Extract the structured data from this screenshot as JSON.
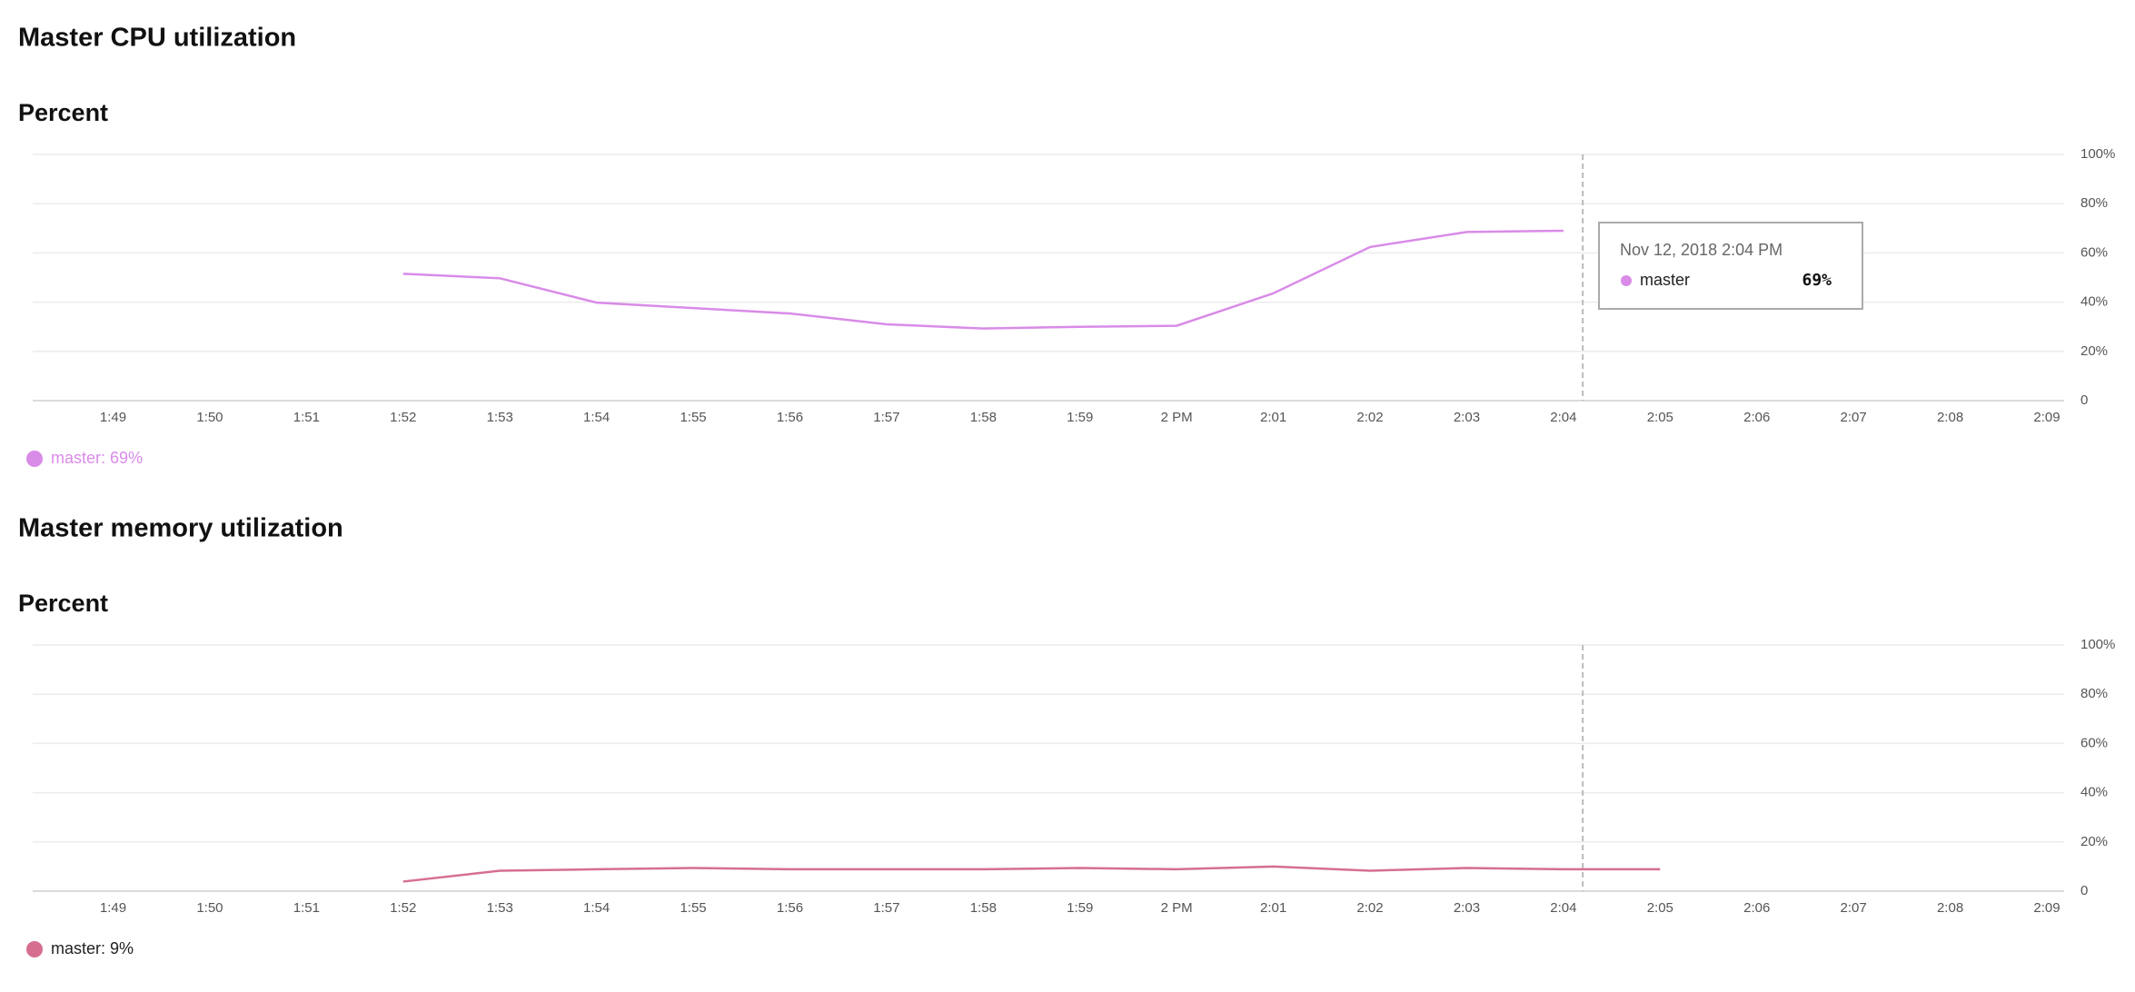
{
  "chart_data": [
    {
      "type": "line",
      "title": "Master CPU utilization",
      "y_axis_title": "Percent",
      "categories": [
        "1:49",
        "1:50",
        "1:51",
        "1:52",
        "1:53",
        "1:54",
        "1:55",
        "1:56",
        "1:57",
        "1:58",
        "1:59",
        "2 PM",
        "2:01",
        "2:02",
        "2:03",
        "2:04",
        "2:05",
        "2:06",
        "2:07",
        "2:08",
        "2:09"
      ],
      "series": [
        {
          "name": "master",
          "color": "#d98be8",
          "values": [
            null,
            null,
            null,
            51.5,
            49.7,
            39.8,
            37.6,
            35.4,
            31,
            29.3,
            30,
            30.4,
            43.6,
            62.4,
            68.5,
            69,
            null,
            null,
            null,
            null,
            null
          ]
        }
      ],
      "ylim": [
        0,
        100
      ],
      "yticks": [
        0,
        {
          "value": 20,
          "label": "20%"
        },
        {
          "value": 40,
          "label": "40%"
        },
        {
          "value": 60,
          "label": "60%"
        },
        {
          "value": 80,
          "label": "80%"
        },
        {
          "value": 100,
          "label": "100%"
        }
      ],
      "grid": true,
      "legend_text": "master:  69%",
      "tooltip": {
        "title": "Nov 12, 2018 2:04 PM",
        "series": "master",
        "value": "69%"
      }
    },
    {
      "type": "line",
      "title": "Master memory utilization",
      "y_axis_title": "Percent",
      "categories": [
        "1:49",
        "1:50",
        "1:51",
        "1:52",
        "1:53",
        "1:54",
        "1:55",
        "1:56",
        "1:57",
        "1:58",
        "1:59",
        "2 PM",
        "2:01",
        "2:02",
        "2:03",
        "2:04",
        "2:05",
        "2:06",
        "2:07",
        "2:08",
        "2:09"
      ],
      "series": [
        {
          "name": "master",
          "color": "#d66f8f",
          "values": [
            null,
            null,
            null,
            3.9,
            8.3,
            8.9,
            9.4,
            8.9,
            8.9,
            8.9,
            9.4,
            8.9,
            10,
            8.3,
            9.4,
            8.9,
            8.9,
            null,
            null,
            null,
            null
          ]
        }
      ],
      "ylim": [
        0,
        100
      ],
      "yticks": [
        0,
        {
          "value": 20,
          "label": "20%"
        },
        {
          "value": 40,
          "label": "40%"
        },
        {
          "value": 60,
          "label": "60%"
        },
        {
          "value": 80,
          "label": "80%"
        },
        {
          "value": 100,
          "label": "100%"
        }
      ],
      "grid": true,
      "legend_text": "master:  9%"
    }
  ]
}
